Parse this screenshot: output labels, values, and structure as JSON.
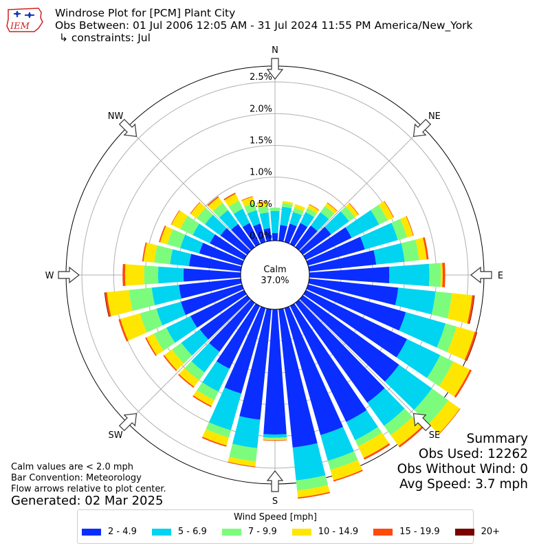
{
  "header": {
    "logo_text": "IEM",
    "title": "Windrose Plot for [PCM] Plant City",
    "obs_between": "Obs Between: 01 Jul 2006 12:05 AM - 31 Jul 2024 11:55 PM America/New_York",
    "constraints": "↳ constraints: Jul"
  },
  "notes": {
    "calm_def": "Calm values are < 2.0 mph",
    "bar_convention": "Bar Convention: Meteorology",
    "flow_arrows": "Flow arrows relative to plot center.",
    "generated": "Generated: 02 Mar 2025"
  },
  "summary": {
    "title": "Summary",
    "obs_used": "Obs Used: 12262",
    "obs_without_wind": "Obs Without Wind: 0",
    "avg_speed": "Avg Speed: 3.7 mph"
  },
  "chart_data": {
    "type": "windrose",
    "calm_label": "Calm",
    "calm_percent": "37.0%",
    "radial_ticks": [
      "0.0%",
      "0.5%",
      "1.0%",
      "1.5%",
      "2.0%",
      "2.5%"
    ],
    "radial_tick_values": [
      0,
      0.5,
      1.0,
      1.5,
      2.0,
      2.5
    ],
    "rmax": 2.75,
    "direction_labels": [
      "N",
      "NE",
      "E",
      "SE",
      "S",
      "SW",
      "W",
      "NW"
    ],
    "legend_title": "Wind Speed [mph]",
    "bins": [
      {
        "label": "2 - 4.9",
        "color": "#0a2eff"
      },
      {
        "label": "5 - 6.9",
        "color": "#00d4f0"
      },
      {
        "label": "7 - 9.9",
        "color": "#7cfc7c"
      },
      {
        "label": "10 - 14.9",
        "color": "#ffe600"
      },
      {
        "label": "15 - 19.9",
        "color": "#ff4a0a"
      },
      {
        "label": "20+",
        "color": "#7a0000"
      }
    ],
    "directions_deg": [
      0,
      10,
      20,
      30,
      40,
      50,
      60,
      70,
      80,
      90,
      100,
      110,
      120,
      130,
      140,
      150,
      160,
      170,
      180,
      190,
      200,
      210,
      220,
      230,
      240,
      250,
      260,
      270,
      280,
      290,
      300,
      310,
      320,
      330,
      340,
      350
    ],
    "cumulative_percent": [
      [
        0.12,
        0.47,
        0.52,
        0.52,
        0.52,
        0.52
      ],
      [
        0.25,
        0.54,
        0.6,
        0.63,
        0.63,
        0.63
      ],
      [
        0.3,
        0.49,
        0.56,
        0.62,
        0.62,
        0.62
      ],
      [
        0.37,
        0.56,
        0.63,
        0.69,
        0.7,
        0.7
      ],
      [
        0.42,
        0.68,
        0.8,
        0.86,
        0.87,
        0.87
      ],
      [
        0.55,
        0.9,
        1.01,
        1.08,
        1.09,
        1.09
      ],
      [
        0.8,
        1.28,
        1.43,
        1.53,
        1.54,
        1.54
      ],
      [
        0.93,
        1.47,
        1.62,
        1.72,
        1.73,
        1.73
      ],
      [
        1.06,
        1.51,
        1.74,
        1.86,
        1.89,
        1.89
      ],
      [
        1.26,
        1.89,
        2.07,
        2.1,
        2.14,
        2.14
      ],
      [
        1.41,
        2.0,
        2.26,
        2.58,
        2.61,
        2.62
      ],
      [
        1.6,
        2.25,
        2.43,
        2.73,
        2.76,
        2.77
      ],
      [
        1.77,
        2.35,
        2.58,
        2.87,
        2.9,
        2.9
      ],
      [
        1.87,
        2.51,
        2.83,
        3.05,
        3.06,
        3.06
      ],
      [
        1.94,
        2.39,
        2.57,
        2.78,
        2.81,
        2.81
      ],
      [
        2.03,
        2.35,
        2.46,
        2.66,
        2.69,
        2.69
      ],
      [
        2.08,
        2.5,
        2.65,
        2.82,
        2.84,
        2.84
      ],
      [
        2.19,
        2.71,
        2.87,
        2.98,
        3.0,
        3.0
      ],
      [
        1.97,
        2.02,
        2.04,
        2.06,
        2.07,
        2.07
      ],
      [
        1.75,
        2.2,
        2.41,
        2.49,
        2.5,
        2.5
      ],
      [
        1.4,
        2.0,
        2.12,
        2.25,
        2.27,
        2.27
      ],
      [
        1.1,
        1.5,
        1.65,
        1.75,
        1.77,
        1.77
      ],
      [
        0.95,
        1.35,
        1.5,
        1.63,
        1.65,
        1.65
      ],
      [
        0.92,
        1.28,
        1.46,
        1.61,
        1.63,
        1.63
      ],
      [
        0.94,
        1.36,
        1.58,
        1.71,
        1.73,
        1.73
      ],
      [
        1.0,
        1.4,
        1.67,
        1.99,
        2.02,
        2.02
      ],
      [
        0.98,
        1.41,
        1.77,
        2.12,
        2.15,
        2.16
      ],
      [
        0.9,
        1.3,
        1.52,
        1.82,
        1.86,
        1.86
      ],
      [
        0.82,
        1.12,
        1.37,
        1.54,
        1.56,
        1.56
      ],
      [
        0.7,
        1.01,
        1.22,
        1.34,
        1.36,
        1.36
      ],
      [
        0.6,
        0.9,
        1.12,
        1.27,
        1.28,
        1.28
      ],
      [
        0.52,
        0.82,
        0.98,
        1.1,
        1.11,
        1.11
      ],
      [
        0.45,
        0.72,
        0.86,
        0.97,
        0.99,
        0.99
      ],
      [
        0.37,
        0.62,
        0.76,
        0.88,
        0.9,
        0.9
      ],
      [
        0.3,
        0.52,
        0.64,
        0.74,
        0.75,
        0.75
      ],
      [
        0.2,
        0.45,
        0.55,
        0.62,
        0.63,
        0.63
      ]
    ]
  }
}
